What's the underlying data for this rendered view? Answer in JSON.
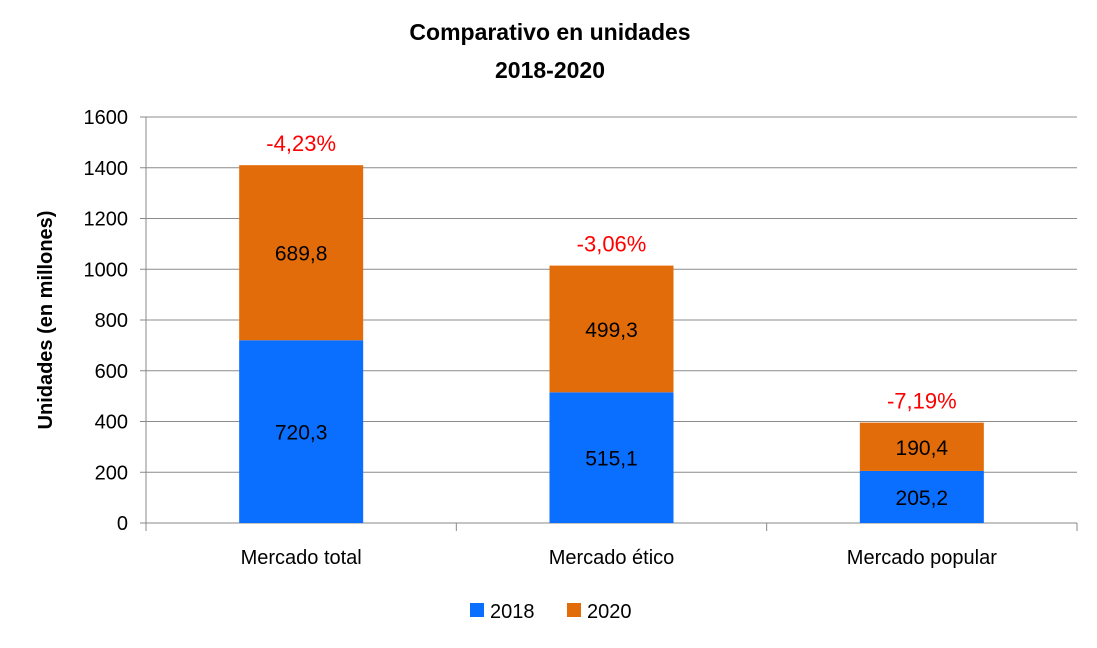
{
  "chart_data": {
    "type": "bar",
    "stacked": true,
    "title": [
      "Comparativo en unidades",
      "2018-2020"
    ],
    "ylabel": "Unidades (en millones)",
    "xlabel": "",
    "categories": [
      "Mercado total",
      "Mercado ético",
      "Mercado popular"
    ],
    "series": [
      {
        "name": "2018",
        "values": [
          720.3,
          515.1,
          205.2
        ],
        "labels": [
          "720,3",
          "515,1",
          "205,2"
        ],
        "color": "#0A6EFF"
      },
      {
        "name": "2020",
        "values": [
          689.8,
          499.3,
          190.4
        ],
        "labels": [
          "689,8",
          "499,3",
          "190,4"
        ],
        "color": "#E36C0A"
      }
    ],
    "annotations": [
      "-4,23%",
      "-3,06%",
      "-7,19%"
    ],
    "annotation_color": "#FF0000",
    "ylim": [
      0,
      1600
    ],
    "yticks": [
      0,
      200,
      400,
      600,
      800,
      1000,
      1200,
      1400,
      1600
    ],
    "grid": true,
    "legend_position": "bottom"
  }
}
